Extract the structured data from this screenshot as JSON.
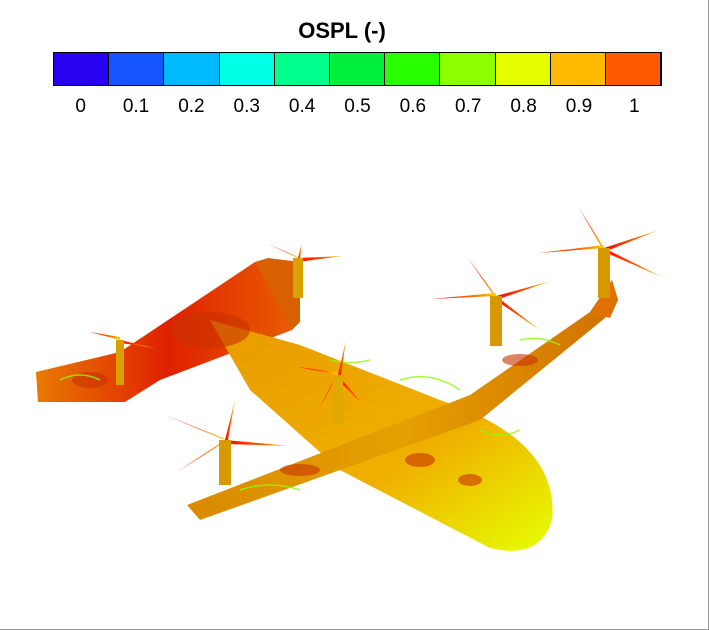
{
  "legend": {
    "title": "OSPL (-)",
    "range": [
      -0.05,
      1.05
    ],
    "ticks": [
      "0",
      "0.1",
      "0.2",
      "0.3",
      "0.4",
      "0.5",
      "0.6",
      "0.7",
      "0.8",
      "0.9",
      "1"
    ],
    "levels": [
      {
        "from": -0.05,
        "to": 0.05,
        "color": "#2a00f0"
      },
      {
        "from": 0.05,
        "to": 0.15,
        "color": "#1455ff"
      },
      {
        "from": 0.15,
        "to": 0.25,
        "color": "#00b9ff"
      },
      {
        "from": 0.25,
        "to": 0.35,
        "color": "#00ffe4"
      },
      {
        "from": 0.35,
        "to": 0.45,
        "color": "#00ff8c"
      },
      {
        "from": 0.45,
        "to": 0.55,
        "color": "#00f03c"
      },
      {
        "from": 0.55,
        "to": 0.65,
        "color": "#28ff00"
      },
      {
        "from": 0.65,
        "to": 0.75,
        "color": "#8cff00"
      },
      {
        "from": 0.75,
        "to": 0.85,
        "color": "#e6ff00"
      },
      {
        "from": 0.85,
        "to": 0.95,
        "color": "#ffbb00"
      },
      {
        "from": 0.95,
        "to": 1.05,
        "color": "#ff5a00"
      },
      {
        "from": 1.05,
        "to": 1.1,
        "color": "#ff0000"
      }
    ]
  }
}
